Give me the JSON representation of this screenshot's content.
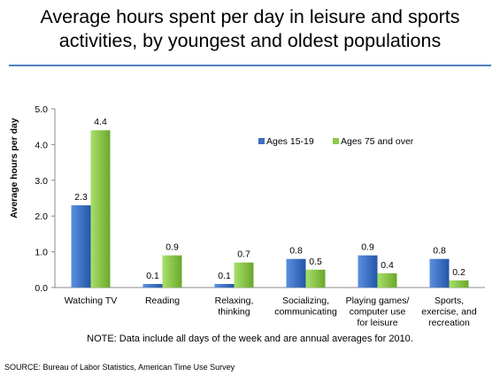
{
  "title_lines": [
    "Average hours spent per day in leisure and sports",
    "activities, by youngest and oldest populations"
  ],
  "note": "NOTE: Data include all days of the week and are annual averages for  2010.",
  "source": "SOURCE: Bureau of Labor Statistics, American Time Use Survey",
  "colors": {
    "rule": "#4f81bd",
    "series1": "#3b6fc6",
    "series2": "#8ccc46"
  },
  "chart_data": {
    "type": "bar",
    "title": "Average hours spent per day in leisure and sports activities, by youngest and oldest populations",
    "ylabel": "Average hours per day",
    "xlabel": "",
    "ylim": [
      0,
      5
    ],
    "yticks": [
      "0.0",
      "1.0",
      "2.0",
      "3.0",
      "4.0",
      "5.0"
    ],
    "grid": false,
    "legend": "top-right",
    "categories": [
      [
        "Watching TV"
      ],
      [
        "Reading"
      ],
      [
        "Relaxing,",
        "thinking"
      ],
      [
        "Socializing,",
        "communicating"
      ],
      [
        "Playing games/",
        "computer use",
        "for leisure"
      ],
      [
        "Sports,",
        "exercise, and",
        "recreation"
      ]
    ],
    "series": [
      {
        "name": "Ages 15-19",
        "values": [
          2.3,
          0.1,
          0.1,
          0.8,
          0.9,
          0.8
        ],
        "labels": [
          "2.3",
          "0.1",
          "0.1",
          "0.8",
          "0.9",
          "0.8"
        ]
      },
      {
        "name": "Ages 75 and over",
        "values": [
          4.4,
          0.9,
          0.7,
          0.5,
          0.4,
          0.2
        ],
        "labels": [
          "4.4",
          "0.9",
          "0.7",
          "0.5",
          "0.4",
          "0.2"
        ]
      }
    ]
  }
}
